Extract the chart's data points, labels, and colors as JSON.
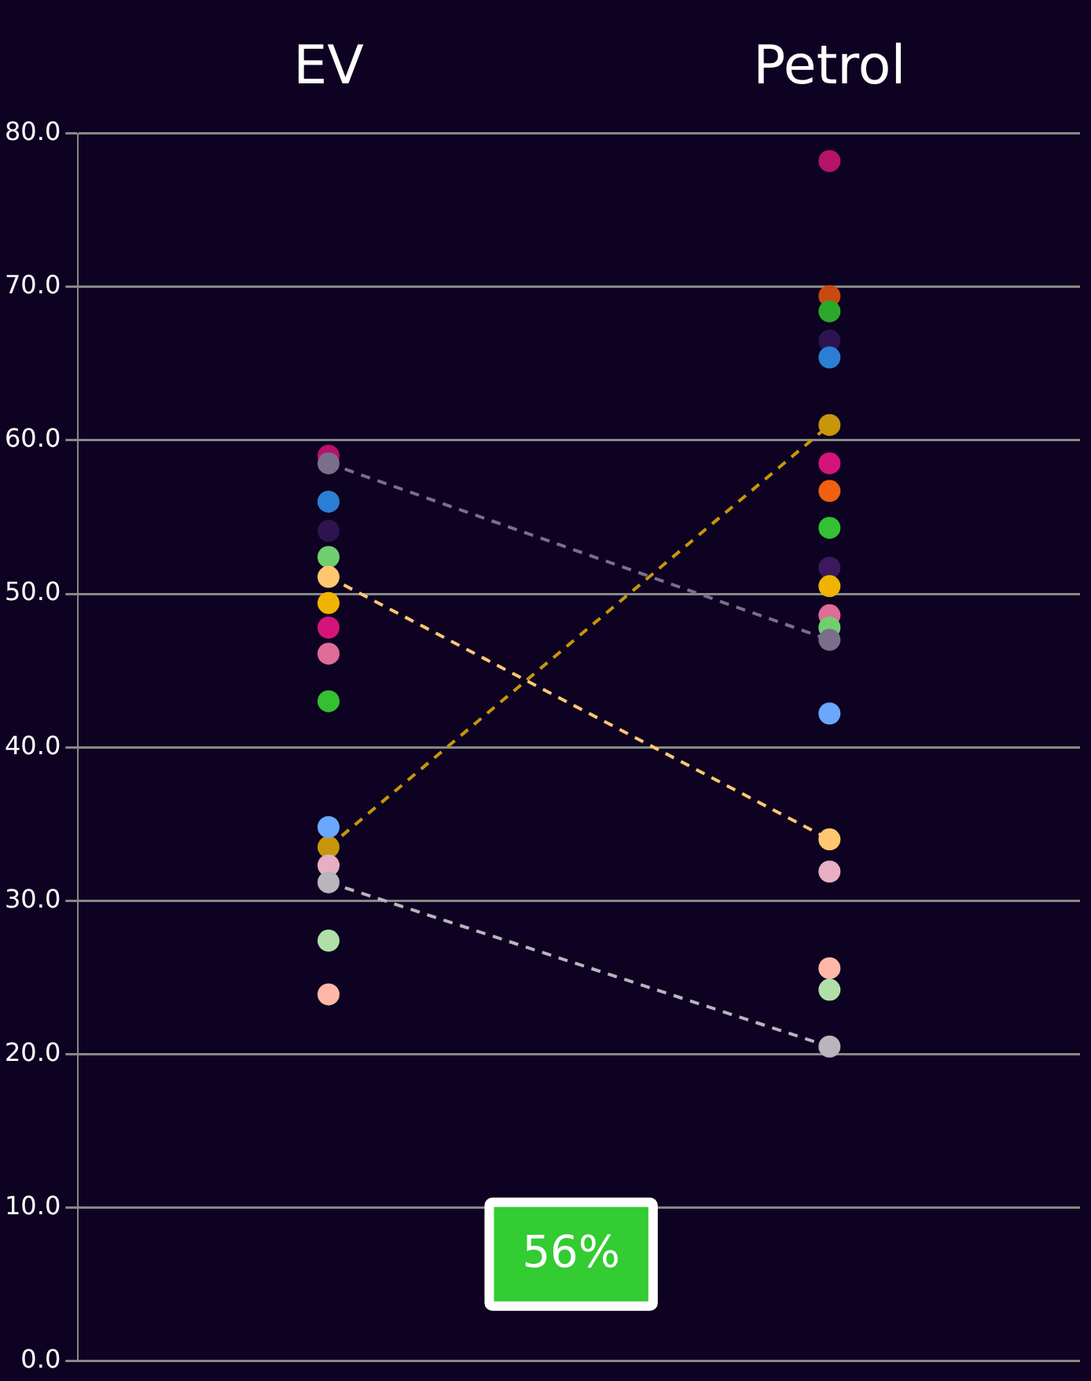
{
  "chart_data": {
    "type": "scatter",
    "categories": [
      "EV",
      "Petrol"
    ],
    "ylim": [
      0,
      80
    ],
    "yticks": [
      {
        "value": 0,
        "label": "0.0"
      },
      {
        "value": 10,
        "label": "10.0"
      },
      {
        "value": 20,
        "label": "20.0"
      },
      {
        "value": 30,
        "label": "30.0"
      },
      {
        "value": 40,
        "label": "40.0"
      },
      {
        "value": 50,
        "label": "50.0"
      },
      {
        "value": 60,
        "label": "60.0"
      },
      {
        "value": 70,
        "label": "70.0"
      },
      {
        "value": 80,
        "label": "80.0"
      }
    ],
    "grid": "y",
    "marker": "circle",
    "legend": false,
    "annotations": [
      "56%"
    ],
    "series": [
      {
        "color": "#b5136a",
        "values": [
          59.0,
          78.2
        ]
      },
      {
        "color": "#c84a10",
        "values": [
          null,
          69.4
        ]
      },
      {
        "color": "#2aa82a",
        "values": [
          null,
          68.4
        ]
      },
      {
        "color": "#2d1450",
        "values": [
          54.1,
          66.5
        ]
      },
      {
        "color": "#2a7fd4",
        "values": [
          56.0,
          65.4
        ]
      },
      {
        "type": "line",
        "line_style": "dashed",
        "color": "#c8960a",
        "values": [
          33.5,
          61.0
        ]
      },
      {
        "color": "#d4147a",
        "values": [
          47.8,
          58.5
        ]
      },
      {
        "color": "#f06010",
        "values": [
          null,
          56.7
        ]
      },
      {
        "color": "#33c033",
        "values": [
          43.0,
          54.3
        ]
      },
      {
        "color": "#3a1a5c",
        "values": [
          null,
          51.7
        ]
      },
      {
        "color": "#f0b400",
        "values": [
          49.4,
          50.5
        ]
      },
      {
        "color": "#e06c9a",
        "values": [
          46.1,
          48.6
        ]
      },
      {
        "color": "#6fcf6f",
        "values": [
          52.4,
          47.8
        ]
      },
      {
        "type": "line",
        "line_style": "dashed",
        "color": "#7a6f8a",
        "values": [
          58.5,
          47.0
        ]
      },
      {
        "color": "#6aa8ff",
        "values": [
          34.8,
          42.2
        ]
      },
      {
        "type": "line",
        "line_style": "dashed",
        "color": "#ffc870",
        "values": [
          51.1,
          34.0
        ]
      },
      {
        "color": "#e8aec4",
        "values": [
          32.3,
          31.9
        ]
      },
      {
        "color": "#ffb8a8",
        "values": [
          23.9,
          25.6
        ]
      },
      {
        "color": "#b0e0a8",
        "values": [
          27.4,
          24.2
        ]
      },
      {
        "type": "line",
        "line_style": "dashed",
        "color": "#b8b5bc",
        "values": [
          31.2,
          20.5
        ]
      }
    ]
  }
}
